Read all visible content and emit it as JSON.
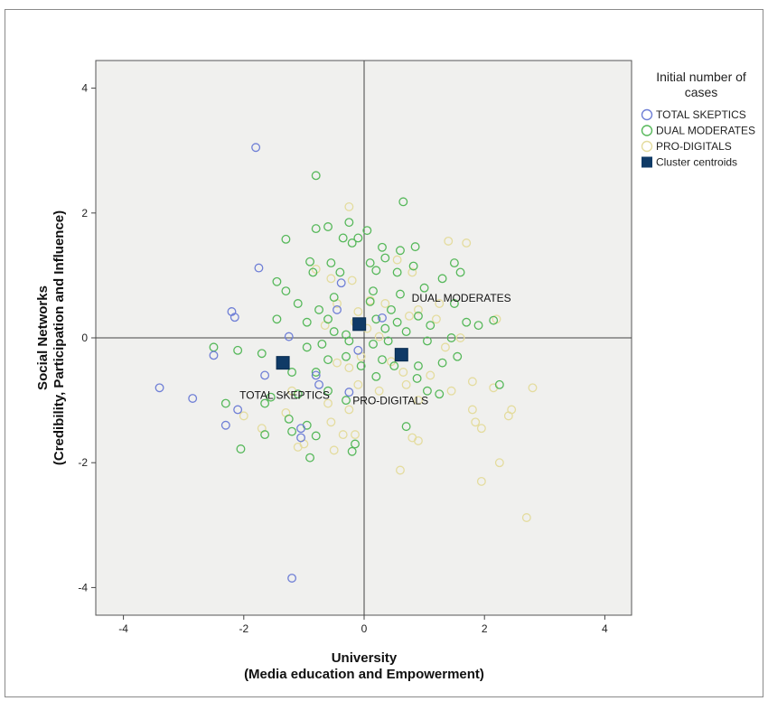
{
  "chart_data": {
    "type": "scatter",
    "title": "",
    "xlabel_line1": "University",
    "xlabel_line2": "(Media education and Empowerment)",
    "ylabel_line1": "Social Networks",
    "ylabel_line2": "(Credibility, Participation and Influence)",
    "xlim": [
      -4.5,
      4.5
    ],
    "ylim": [
      -4.5,
      4.5
    ],
    "xticks": [
      -4,
      -2,
      0,
      2,
      4
    ],
    "yticks": [
      -4,
      -2,
      0,
      2,
      4
    ],
    "x_tick_labels": [
      "-4",
      "-2",
      "0",
      "2",
      "4"
    ],
    "y_tick_labels": [
      "-4",
      "-2",
      "0",
      "2",
      "4"
    ],
    "reference_lines": {
      "x": 0,
      "y": 0
    },
    "background": "#f0f0ee",
    "legend": {
      "title_line1": "Initial number of",
      "title_line2": "cases",
      "placement": "right",
      "entries": [
        {
          "label": "TOTAL SKEPTICS",
          "color": "#6f7fd6",
          "marker": "circle"
        },
        {
          "label": "DUAL MODERATES",
          "color": "#56b85a",
          "marker": "circle"
        },
        {
          "label": "PRO-DIGITALS",
          "color": "#e4dc9e",
          "marker": "circle"
        },
        {
          "label": "Cluster centroids",
          "color": "#0f3a66",
          "marker": "square"
        }
      ]
    },
    "centroids": [
      {
        "name": "TOTAL SKEPTICS",
        "x": -1.35,
        "y": -0.4,
        "label": "TOTAL SKEPTICS"
      },
      {
        "name": "DUAL MODERATES",
        "x": -0.08,
        "y": 0.22,
        "label": "DUAL MODERATES"
      },
      {
        "name": "PRO-DIGITALS",
        "x": 0.62,
        "y": -0.27,
        "label": "PRO-DIGITALS"
      }
    ],
    "series": [
      {
        "name": "TOTAL SKEPTICS",
        "color": "#6f7fd6",
        "points": [
          [
            -1.8,
            3.05
          ],
          [
            -1.75,
            1.12
          ],
          [
            -2.2,
            0.42
          ],
          [
            -2.15,
            0.33
          ],
          [
            -2.5,
            -0.28
          ],
          [
            -3.4,
            -0.8
          ],
          [
            -2.85,
            -0.97
          ],
          [
            -2.1,
            -1.15
          ],
          [
            -2.3,
            -1.4
          ],
          [
            -1.65,
            -0.6
          ],
          [
            -1.25,
            0.02
          ],
          [
            -0.8,
            -0.6
          ],
          [
            -0.75,
            -0.75
          ],
          [
            -0.25,
            -0.87
          ],
          [
            -1.05,
            -1.45
          ],
          [
            -1.05,
            -1.6
          ],
          [
            -1.2,
            -3.85
          ],
          [
            -0.45,
            0.45
          ],
          [
            -0.38,
            0.88
          ],
          [
            -0.1,
            -0.2
          ],
          [
            0.3,
            0.32
          ]
        ]
      },
      {
        "name": "DUAL MODERATES",
        "color": "#56b85a",
        "points": [
          [
            -0.8,
            2.6
          ],
          [
            0.65,
            2.18
          ],
          [
            -0.25,
            1.85
          ],
          [
            -0.6,
            1.78
          ],
          [
            -0.8,
            1.75
          ],
          [
            0.05,
            1.72
          ],
          [
            -1.3,
            1.58
          ],
          [
            -0.35,
            1.6
          ],
          [
            -0.1,
            1.6
          ],
          [
            -0.2,
            1.52
          ],
          [
            0.3,
            1.45
          ],
          [
            0.85,
            1.46
          ],
          [
            0.6,
            1.4
          ],
          [
            1.5,
            1.2
          ],
          [
            1.6,
            1.05
          ],
          [
            -0.9,
            1.22
          ],
          [
            -0.55,
            1.2
          ],
          [
            -0.85,
            1.05
          ],
          [
            -0.4,
            1.05
          ],
          [
            0.1,
            1.2
          ],
          [
            0.35,
            1.28
          ],
          [
            -1.45,
            0.9
          ],
          [
            0.2,
            1.08
          ],
          [
            0.55,
            1.05
          ],
          [
            0.82,
            1.15
          ],
          [
            1.3,
            0.95
          ],
          [
            -1.3,
            0.75
          ],
          [
            -0.5,
            0.65
          ],
          [
            0.15,
            0.75
          ],
          [
            0.6,
            0.7
          ],
          [
            1.0,
            0.8
          ],
          [
            -1.1,
            0.55
          ],
          [
            -0.75,
            0.45
          ],
          [
            0.1,
            0.58
          ],
          [
            0.45,
            0.45
          ],
          [
            -1.45,
            0.3
          ],
          [
            -0.95,
            0.25
          ],
          [
            -0.6,
            0.3
          ],
          [
            0.2,
            0.3
          ],
          [
            0.55,
            0.25
          ],
          [
            0.9,
            0.35
          ],
          [
            1.5,
            0.55
          ],
          [
            1.7,
            0.25
          ],
          [
            1.9,
            0.2
          ],
          [
            2.15,
            0.28
          ],
          [
            -0.5,
            0.1
          ],
          [
            -0.3,
            0.05
          ],
          [
            0.35,
            0.15
          ],
          [
            0.7,
            0.1
          ],
          [
            1.1,
            0.2
          ],
          [
            -2.5,
            -0.15
          ],
          [
            -2.1,
            -0.2
          ],
          [
            -1.7,
            -0.25
          ],
          [
            -0.95,
            -0.15
          ],
          [
            -0.7,
            -0.1
          ],
          [
            -0.25,
            -0.05
          ],
          [
            0.15,
            -0.1
          ],
          [
            0.4,
            -0.05
          ],
          [
            1.05,
            -0.05
          ],
          [
            1.45,
            0.0
          ],
          [
            -0.6,
            -0.35
          ],
          [
            -0.3,
            -0.3
          ],
          [
            -0.05,
            -0.45
          ],
          [
            0.3,
            -0.35
          ],
          [
            0.5,
            -0.45
          ],
          [
            0.9,
            -0.45
          ],
          [
            1.3,
            -0.4
          ],
          [
            1.55,
            -0.3
          ],
          [
            -1.2,
            -0.55
          ],
          [
            -0.8,
            -0.55
          ],
          [
            0.2,
            -0.62
          ],
          [
            0.88,
            -0.65
          ],
          [
            1.05,
            -0.85
          ],
          [
            1.25,
            -0.9
          ],
          [
            2.25,
            -0.75
          ],
          [
            -1.55,
            -0.95
          ],
          [
            -1.1,
            -0.9
          ],
          [
            -0.6,
            -0.85
          ],
          [
            -0.3,
            -1.0
          ],
          [
            -2.3,
            -1.05
          ],
          [
            -1.65,
            -1.05
          ],
          [
            -1.25,
            -1.3
          ],
          [
            -0.95,
            -1.4
          ],
          [
            -1.2,
            -1.5
          ],
          [
            -1.65,
            -1.55
          ],
          [
            -0.8,
            -1.57
          ],
          [
            -2.05,
            -1.78
          ],
          [
            -0.15,
            -1.7
          ],
          [
            -0.2,
            -1.82
          ],
          [
            -0.9,
            -1.92
          ],
          [
            0.7,
            -1.42
          ]
        ]
      },
      {
        "name": "PRO-DIGITALS",
        "color": "#e4dc9e",
        "points": [
          [
            -0.25,
            2.1
          ],
          [
            1.4,
            1.55
          ],
          [
            1.7,
            1.52
          ],
          [
            0.55,
            1.25
          ],
          [
            0.8,
            1.05
          ],
          [
            -0.8,
            1.1
          ],
          [
            -0.55,
            0.95
          ],
          [
            -0.2,
            0.92
          ],
          [
            0.1,
            0.6
          ],
          [
            0.35,
            0.55
          ],
          [
            -0.45,
            0.55
          ],
          [
            -0.1,
            0.42
          ],
          [
            0.9,
            0.45
          ],
          [
            1.25,
            0.55
          ],
          [
            2.2,
            0.3
          ],
          [
            -0.65,
            0.2
          ],
          [
            0.05,
            0.15
          ],
          [
            0.75,
            0.35
          ],
          [
            1.2,
            0.3
          ],
          [
            1.6,
            0.0
          ],
          [
            -0.45,
            -0.4
          ],
          [
            -0.25,
            -0.48
          ],
          [
            0.45,
            -0.38
          ],
          [
            0.65,
            -0.55
          ],
          [
            1.1,
            -0.6
          ],
          [
            1.35,
            -0.15
          ],
          [
            1.8,
            -0.7
          ],
          [
            2.15,
            -0.8
          ],
          [
            2.8,
            -0.8
          ],
          [
            -1.2,
            -0.85
          ],
          [
            -0.1,
            -0.75
          ],
          [
            0.25,
            -0.85
          ],
          [
            0.7,
            -0.75
          ],
          [
            1.45,
            -0.85
          ],
          [
            1.8,
            -1.15
          ],
          [
            2.45,
            -1.15
          ],
          [
            2.4,
            -1.25
          ],
          [
            -2.0,
            -1.25
          ],
          [
            -1.7,
            -1.45
          ],
          [
            -0.6,
            -1.05
          ],
          [
            -0.25,
            -1.15
          ],
          [
            0.9,
            -1.0
          ],
          [
            1.85,
            -1.35
          ],
          [
            1.95,
            -1.45
          ],
          [
            -0.55,
            -1.35
          ],
          [
            -0.35,
            -1.55
          ],
          [
            0.8,
            -1.6
          ],
          [
            0.9,
            -1.65
          ],
          [
            -1.0,
            -1.7
          ],
          [
            -0.5,
            -1.8
          ],
          [
            -1.1,
            -1.75
          ],
          [
            -0.15,
            -1.55
          ],
          [
            2.25,
            -2.0
          ],
          [
            0.6,
            -2.12
          ],
          [
            1.95,
            -2.3
          ],
          [
            2.7,
            -2.88
          ],
          [
            -1.3,
            -1.2
          ],
          [
            -0.05,
            -0.3
          ],
          [
            -0.15,
            0.25
          ],
          [
            0.25,
            0.02
          ]
        ]
      }
    ]
  }
}
